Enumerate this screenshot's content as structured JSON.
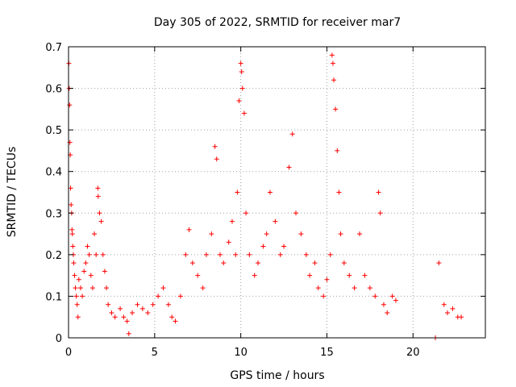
{
  "chart_data": {
    "type": "scatter",
    "title": "Day 305 of 2022, SRMTID for receiver mar7",
    "xlabel": "GPS time / hours",
    "ylabel": "SRMTID / TECUs",
    "xlim": [
      0,
      24.2
    ],
    "ylim": [
      0,
      0.7
    ],
    "xticks": [
      0,
      5,
      10,
      15,
      20
    ],
    "xtick_labels": [
      "0",
      "5",
      "10",
      "15",
      "20"
    ],
    "yticks": [
      0,
      0.1,
      0.2,
      0.3,
      0.4,
      0.5,
      0.6,
      0.7
    ],
    "ytick_labels": [
      "0",
      "0.1",
      "0.2",
      "0.3",
      "0.4",
      "0.5",
      "0.6",
      "0.7"
    ],
    "grid": true,
    "marker": "+",
    "color": "#ff0000",
    "series": [
      {
        "name": "SRMTID",
        "points": [
          [
            0.02,
            0.66
          ],
          [
            0.04,
            0.6
          ],
          [
            0.06,
            0.56
          ],
          [
            0.08,
            0.47
          ],
          [
            0.1,
            0.44
          ],
          [
            0.12,
            0.36
          ],
          [
            0.15,
            0.32
          ],
          [
            0.18,
            0.3
          ],
          [
            0.2,
            0.26
          ],
          [
            0.22,
            0.25
          ],
          [
            0.25,
            0.22
          ],
          [
            0.28,
            0.2
          ],
          [
            0.3,
            0.18
          ],
          [
            0.35,
            0.15
          ],
          [
            0.4,
            0.12
          ],
          [
            0.45,
            0.1
          ],
          [
            0.5,
            0.08
          ],
          [
            0.55,
            0.05
          ],
          [
            0.6,
            0.14
          ],
          [
            0.7,
            0.12
          ],
          [
            0.8,
            0.1
          ],
          [
            0.9,
            0.16
          ],
          [
            1.0,
            0.18
          ],
          [
            1.1,
            0.22
          ],
          [
            1.2,
            0.2
          ],
          [
            1.3,
            0.15
          ],
          [
            1.4,
            0.12
          ],
          [
            1.5,
            0.25
          ],
          [
            1.6,
            0.2
          ],
          [
            1.7,
            0.36
          ],
          [
            1.72,
            0.34
          ],
          [
            1.8,
            0.3
          ],
          [
            1.9,
            0.28
          ],
          [
            2.0,
            0.2
          ],
          [
            2.1,
            0.16
          ],
          [
            2.2,
            0.12
          ],
          [
            2.3,
            0.08
          ],
          [
            2.5,
            0.06
          ],
          [
            2.7,
            0.05
          ],
          [
            3.0,
            0.07
          ],
          [
            3.2,
            0.05
          ],
          [
            3.4,
            0.04
          ],
          [
            3.5,
            0.01
          ],
          [
            3.7,
            0.06
          ],
          [
            4.0,
            0.08
          ],
          [
            4.3,
            0.07
          ],
          [
            4.6,
            0.06
          ],
          [
            4.9,
            0.08
          ],
          [
            5.2,
            0.1
          ],
          [
            5.5,
            0.12
          ],
          [
            5.8,
            0.08
          ],
          [
            6.0,
            0.05
          ],
          [
            6.2,
            0.04
          ],
          [
            6.5,
            0.1
          ],
          [
            6.8,
            0.2
          ],
          [
            7.0,
            0.26
          ],
          [
            7.2,
            0.18
          ],
          [
            7.5,
            0.15
          ],
          [
            7.8,
            0.12
          ],
          [
            8.0,
            0.2
          ],
          [
            8.3,
            0.25
          ],
          [
            8.5,
            0.46
          ],
          [
            8.6,
            0.43
          ],
          [
            8.8,
            0.2
          ],
          [
            9.0,
            0.18
          ],
          [
            9.3,
            0.23
          ],
          [
            9.5,
            0.28
          ],
          [
            9.7,
            0.2
          ],
          [
            9.8,
            0.35
          ],
          [
            9.9,
            0.57
          ],
          [
            10.0,
            0.66
          ],
          [
            10.05,
            0.64
          ],
          [
            10.1,
            0.6
          ],
          [
            10.2,
            0.54
          ],
          [
            10.3,
            0.3
          ],
          [
            10.5,
            0.2
          ],
          [
            10.8,
            0.15
          ],
          [
            11.0,
            0.18
          ],
          [
            11.3,
            0.22
          ],
          [
            11.5,
            0.25
          ],
          [
            11.7,
            0.35
          ],
          [
            12.0,
            0.28
          ],
          [
            12.3,
            0.2
          ],
          [
            12.5,
            0.22
          ],
          [
            12.8,
            0.41
          ],
          [
            13.0,
            0.49
          ],
          [
            13.2,
            0.3
          ],
          [
            13.5,
            0.25
          ],
          [
            13.8,
            0.2
          ],
          [
            14.0,
            0.15
          ],
          [
            14.3,
            0.18
          ],
          [
            14.5,
            0.12
          ],
          [
            14.8,
            0.1
          ],
          [
            15.0,
            0.14
          ],
          [
            15.2,
            0.2
          ],
          [
            15.3,
            0.68
          ],
          [
            15.35,
            0.66
          ],
          [
            15.4,
            0.62
          ],
          [
            15.5,
            0.55
          ],
          [
            15.6,
            0.45
          ],
          [
            15.7,
            0.35
          ],
          [
            15.8,
            0.25
          ],
          [
            16.0,
            0.18
          ],
          [
            16.3,
            0.15
          ],
          [
            16.6,
            0.12
          ],
          [
            16.9,
            0.25
          ],
          [
            17.2,
            0.15
          ],
          [
            17.5,
            0.12
          ],
          [
            17.8,
            0.1
          ],
          [
            18.0,
            0.35
          ],
          [
            18.1,
            0.3
          ],
          [
            18.3,
            0.08
          ],
          [
            18.5,
            0.06
          ],
          [
            18.8,
            0.1
          ],
          [
            19.0,
            0.09
          ],
          [
            21.3,
            0.0
          ],
          [
            21.5,
            0.18
          ],
          [
            21.8,
            0.08
          ],
          [
            22.0,
            0.06
          ],
          [
            22.3,
            0.07
          ],
          [
            22.6,
            0.05
          ],
          [
            22.8,
            0.05
          ]
        ]
      }
    ]
  }
}
